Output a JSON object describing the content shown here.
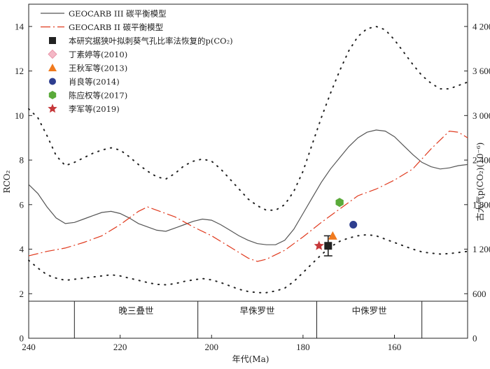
{
  "chart_data": {
    "type": "line",
    "title": "",
    "xlabel": "年代(Ma)",
    "ylabel_left": "RCO₂",
    "ylabel_right": "古大气p(CO₂)(10⁻⁶)",
    "xlim": [
      240,
      144
    ],
    "ylim_left": [
      0,
      15
    ],
    "ylim_right": [
      0,
      4500
    ],
    "x_ticks": [
      240,
      220,
      200,
      180,
      160
    ],
    "y_ticks_left": [
      0,
      2,
      4,
      6,
      8,
      10,
      12,
      14
    ],
    "y_ticks_right": [
      "0",
      "600",
      "1 200",
      "1 800",
      "2 400",
      "3 000",
      "3 600",
      "4 200"
    ],
    "y_ticks_right_values": [
      0,
      600,
      1200,
      1800,
      2400,
      3000,
      3600,
      4200
    ],
    "grid": false,
    "legend_position": "top-left",
    "periods": [
      {
        "label": "",
        "start": 240,
        "end": 230
      },
      {
        "label": "晚三叠世",
        "start": 230,
        "end": 203
      },
      {
        "label": "早侏罗世",
        "start": 203,
        "end": 177
      },
      {
        "label": "中侏罗世",
        "start": 177,
        "end": 154
      },
      {
        "label": "",
        "start": 154,
        "end": 144
      }
    ],
    "series": [
      {
        "name": "GEOCARB III  碳平衡模型",
        "style": "solid",
        "color": "#555555",
        "x": [
          240,
          238,
          236,
          234,
          232,
          230,
          228,
          226,
          224,
          222,
          220,
          218,
          216,
          214,
          212,
          210,
          208,
          206,
          204,
          202,
          200,
          198,
          196,
          194,
          192,
          190,
          188,
          186,
          184,
          182,
          180,
          178,
          176,
          174,
          172,
          170,
          168,
          166,
          164,
          162,
          160,
          158,
          156,
          154,
          152,
          150,
          148,
          146,
          144
        ],
        "y": [
          6.9,
          6.5,
          5.9,
          5.4,
          5.15,
          5.2,
          5.35,
          5.5,
          5.65,
          5.7,
          5.6,
          5.4,
          5.15,
          5.0,
          4.85,
          4.8,
          4.95,
          5.1,
          5.25,
          5.35,
          5.3,
          5.1,
          4.85,
          4.6,
          4.4,
          4.25,
          4.2,
          4.2,
          4.4,
          4.9,
          5.6,
          6.3,
          7.0,
          7.6,
          8.1,
          8.6,
          9.0,
          9.25,
          9.35,
          9.3,
          9.05,
          8.65,
          8.25,
          7.9,
          7.7,
          7.6,
          7.65,
          7.75,
          7.8
        ]
      },
      {
        "name": "GEOCARB II  碳平衡模型",
        "style": "dashdot",
        "color": "#e03a1e",
        "x": [
          240,
          236,
          232,
          228,
          224,
          220,
          216,
          214,
          212,
          208,
          204,
          200,
          196,
          192,
          190,
          188,
          184,
          180,
          176,
          172,
          168,
          164,
          160,
          156,
          152,
          148,
          146,
          144
        ],
        "y": [
          3.7,
          3.9,
          4.05,
          4.3,
          4.6,
          5.1,
          5.7,
          5.9,
          5.75,
          5.45,
          5.0,
          4.6,
          4.1,
          3.6,
          3.45,
          3.55,
          3.95,
          4.55,
          5.2,
          5.8,
          6.4,
          6.7,
          7.1,
          7.6,
          8.5,
          9.3,
          9.25,
          9.0
        ]
      },
      {
        "name": "GEOCARB III upper bound",
        "style": "dotted",
        "color": "#222222",
        "x": [
          240,
          238,
          236,
          234,
          232,
          230,
          228,
          226,
          224,
          222,
          220,
          218,
          216,
          214,
          212,
          210,
          208,
          206,
          204,
          202,
          200,
          198,
          196,
          194,
          192,
          190,
          188,
          186,
          184,
          182,
          180,
          178,
          176,
          174,
          172,
          170,
          168,
          166,
          164,
          162,
          160,
          158,
          156,
          154,
          152,
          150,
          148,
          146,
          144
        ],
        "y": [
          10.3,
          9.9,
          9.1,
          8.2,
          7.75,
          7.9,
          8.1,
          8.3,
          8.45,
          8.55,
          8.45,
          8.15,
          7.8,
          7.5,
          7.25,
          7.15,
          7.4,
          7.75,
          7.95,
          8.05,
          7.95,
          7.6,
          7.15,
          6.7,
          6.25,
          5.95,
          5.75,
          5.75,
          6.0,
          6.6,
          7.5,
          8.7,
          9.9,
          11.0,
          12.0,
          12.9,
          13.55,
          13.9,
          14.0,
          13.85,
          13.4,
          12.85,
          12.3,
          11.8,
          11.45,
          11.2,
          11.2,
          11.35,
          11.5
        ]
      },
      {
        "name": "GEOCARB III lower bound",
        "style": "dotted",
        "color": "#222222",
        "x": [
          240,
          238,
          236,
          234,
          232,
          230,
          228,
          226,
          224,
          222,
          220,
          218,
          216,
          214,
          212,
          210,
          208,
          206,
          204,
          202,
          200,
          198,
          196,
          194,
          192,
          190,
          188,
          186,
          184,
          182,
          180,
          178,
          176,
          174,
          172,
          170,
          168,
          166,
          164,
          162,
          160,
          158,
          156,
          154,
          152,
          150,
          148,
          146,
          144
        ],
        "y": [
          3.5,
          3.15,
          2.85,
          2.7,
          2.6,
          2.65,
          2.7,
          2.75,
          2.8,
          2.85,
          2.8,
          2.7,
          2.6,
          2.5,
          2.42,
          2.4,
          2.45,
          2.55,
          2.62,
          2.68,
          2.62,
          2.5,
          2.35,
          2.2,
          2.1,
          2.05,
          2.05,
          2.12,
          2.25,
          2.55,
          2.95,
          3.35,
          3.75,
          4.1,
          4.35,
          4.5,
          4.6,
          4.65,
          4.6,
          4.45,
          4.3,
          4.15,
          4.0,
          3.88,
          3.82,
          3.78,
          3.8,
          3.85,
          3.9
        ]
      }
    ],
    "points": [
      {
        "name": "本研究据狭叶拟刺葵气孔比率法恢复的p(CO₂)",
        "shape": "square",
        "color": "#222222",
        "x": 174.5,
        "y": 4.15,
        "err": 0.45
      },
      {
        "name": "丁素婷等(2010)",
        "shape": "diamond",
        "color": "#f4b8c6",
        "x": null,
        "y": null
      },
      {
        "name": "王秋军等(2013)",
        "shape": "triangle",
        "color": "#f07a1e",
        "x": 173.5,
        "y": 4.6
      },
      {
        "name": "肖良等(2014)",
        "shape": "circle",
        "color": "#2e3e8f",
        "x": 169,
        "y": 5.1
      },
      {
        "name": "陈应权等(2017)",
        "shape": "hexagon",
        "color": "#5aaa3a",
        "x": 172,
        "y": 6.1
      },
      {
        "name": "李军等(2019)",
        "shape": "star",
        "color": "#c6383a",
        "x": 176.5,
        "y": 4.15
      }
    ]
  }
}
